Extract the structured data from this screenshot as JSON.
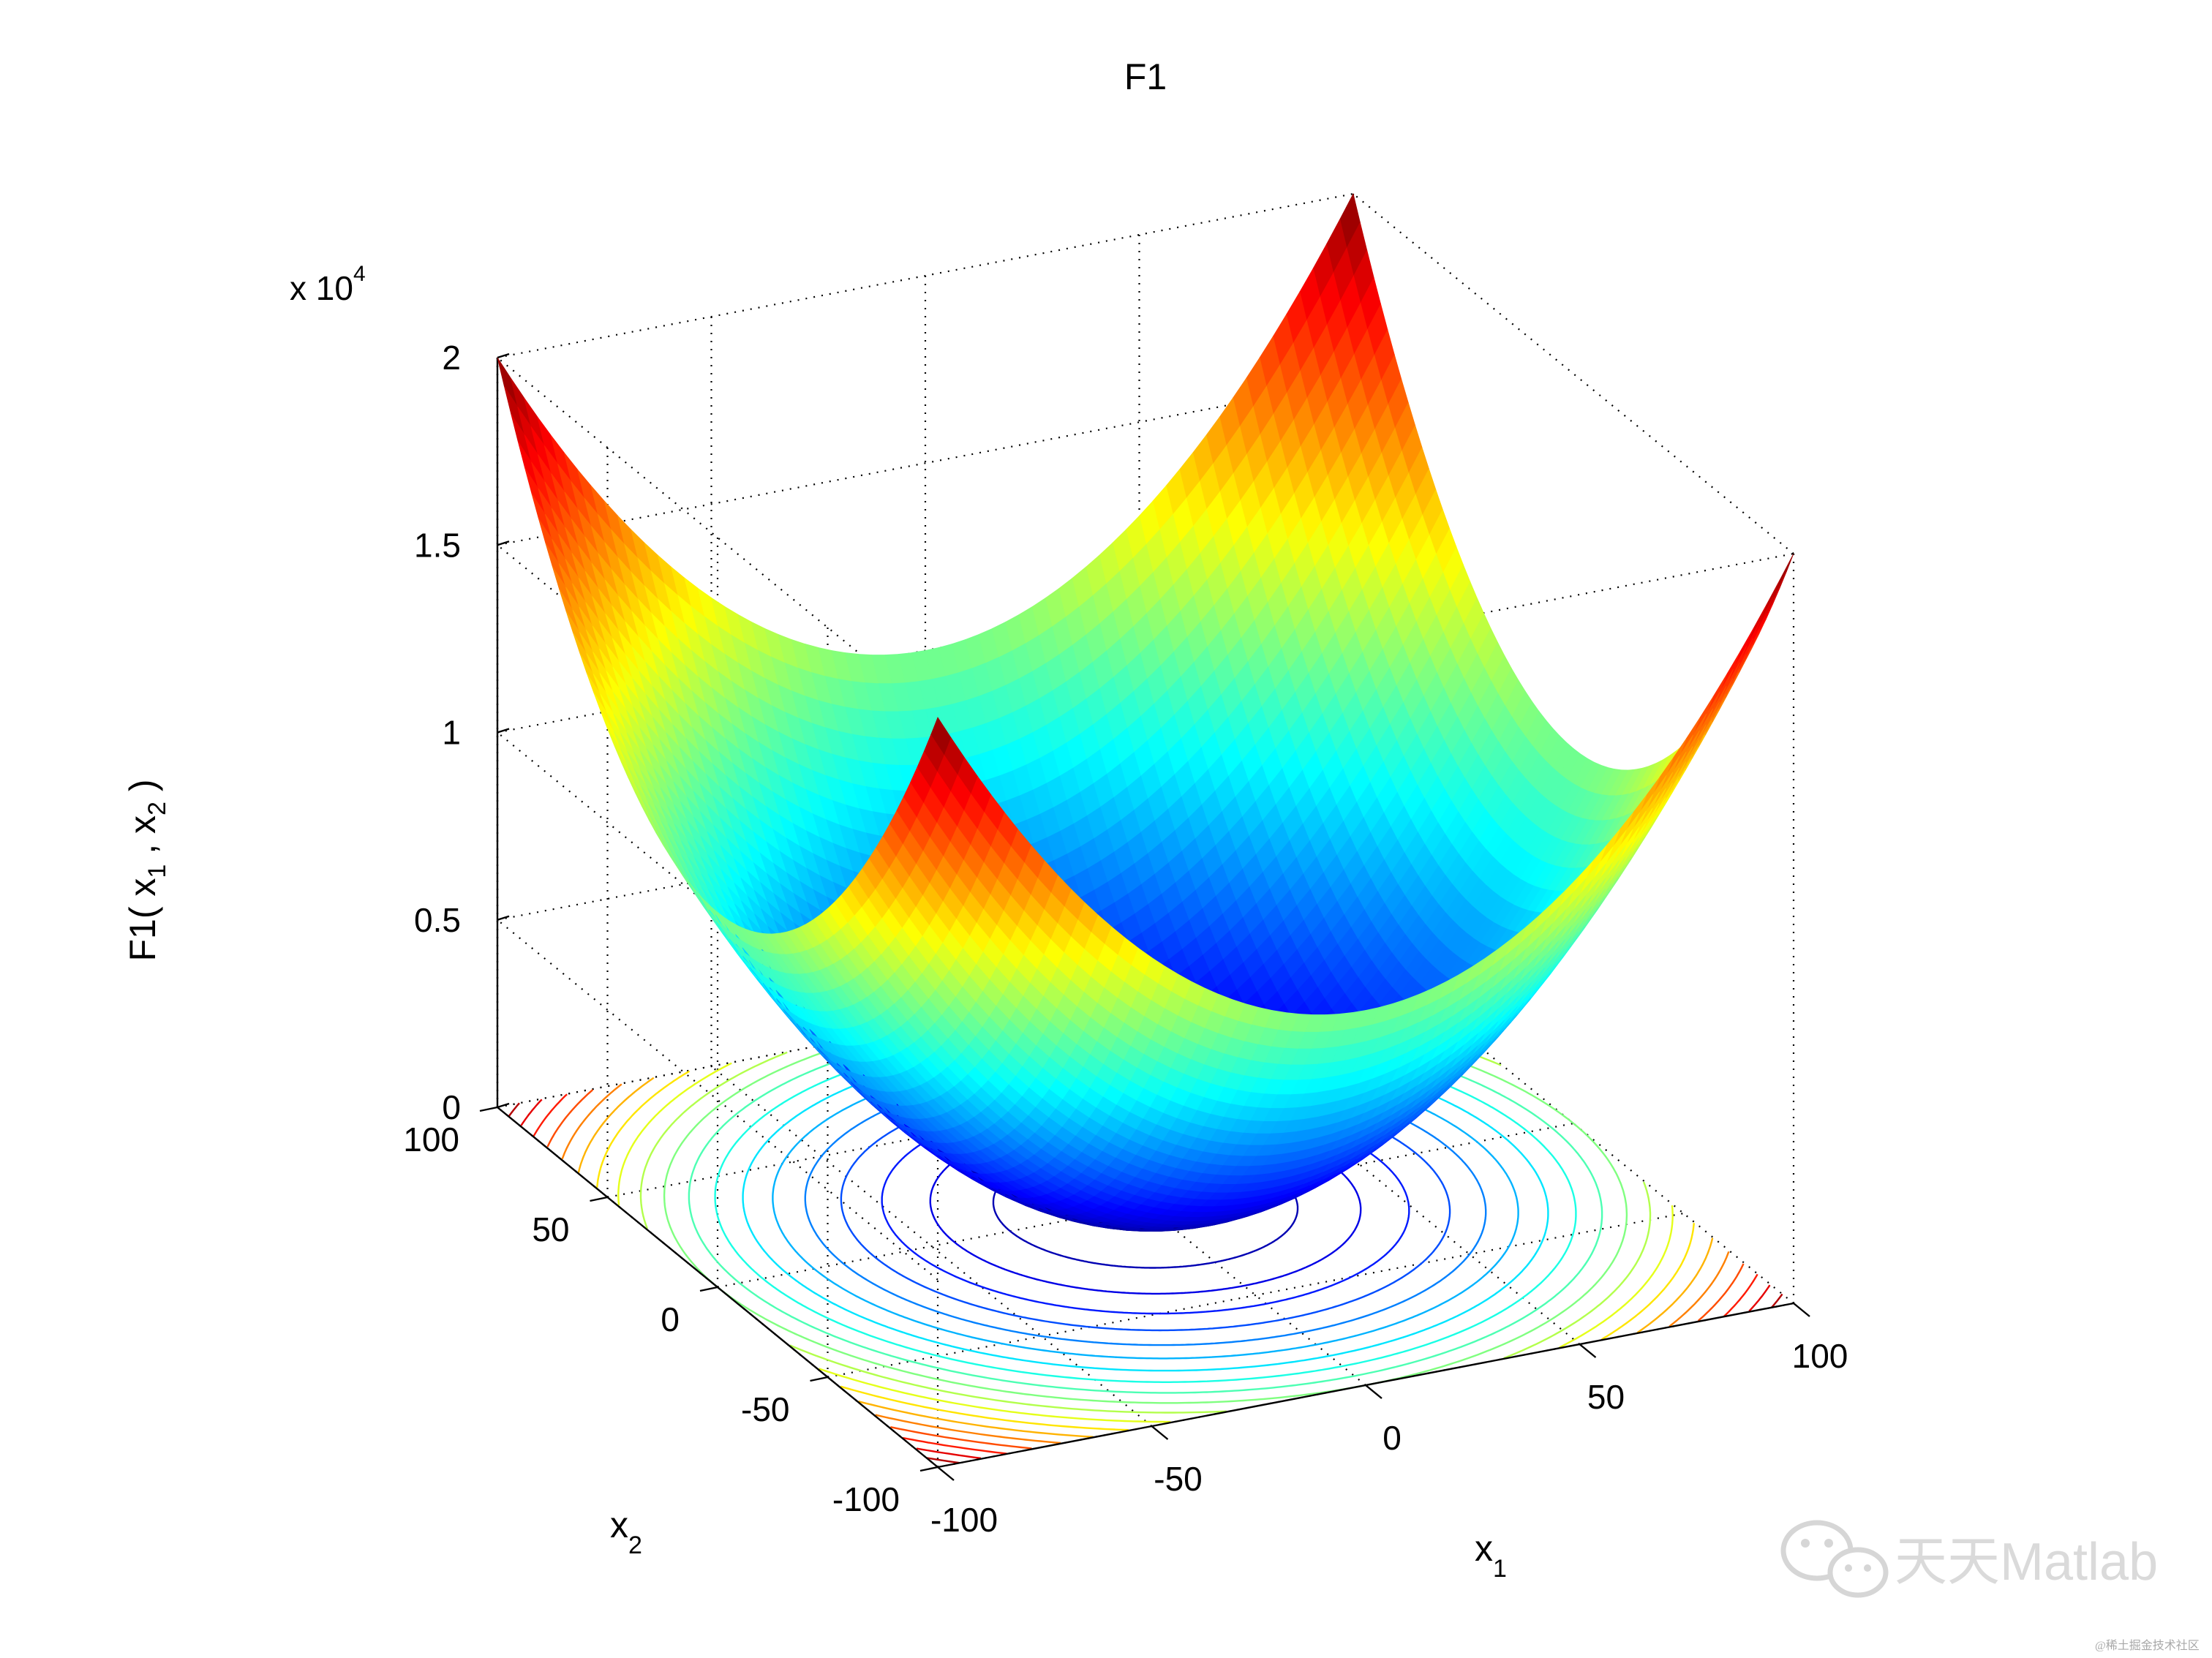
{
  "chart_data": {
    "type": "surface",
    "function": "F1(x1,x2) = x1^2 + x2^2",
    "title": "F1",
    "xlabel_base": "x",
    "xlabel_sub": "1",
    "ylabel_base": "x",
    "ylabel_sub": "2",
    "zlabel_parts": [
      "F1( x",
      "1",
      " , x",
      "2",
      " )"
    ],
    "z_exponent_base": "x 10",
    "z_exponent_power": "4",
    "x_range": [
      -100,
      100
    ],
    "y_range": [
      -100,
      100
    ],
    "z_range": [
      0,
      20000
    ],
    "x_ticks": [
      "-100",
      "-50",
      "0",
      "50",
      "100"
    ],
    "y_ticks": [
      "-100",
      "-50",
      "0",
      "50",
      "100"
    ],
    "z_ticks": [
      "0",
      "0.5",
      "1",
      "1.5",
      "2"
    ],
    "grid": true,
    "colormap": "jet",
    "contour_levels": [
      1000,
      2000,
      3000,
      4000,
      5000,
      6000,
      7000,
      8000,
      9000,
      10000,
      11000,
      12000,
      13000,
      14000,
      15000,
      16000,
      17000,
      18000,
      19000
    ],
    "sample_points": [
      {
        "x1": -100,
        "x2": -100,
        "z": 20000
      },
      {
        "x1": 100,
        "x2": 100,
        "z": 20000
      },
      {
        "x1": -100,
        "x2": 100,
        "z": 20000
      },
      {
        "x1": 100,
        "x2": -100,
        "z": 20000
      },
      {
        "x1": 0,
        "x2": 0,
        "z": 0
      },
      {
        "x1": 100,
        "x2": 0,
        "z": 10000
      },
      {
        "x1": 0,
        "x2": 100,
        "z": 10000
      },
      {
        "x1": 50,
        "x2": 50,
        "z": 5000
      }
    ]
  },
  "watermark": {
    "text": "天天Matlab",
    "small_text": "@稀土掘金技术社区",
    "icon": "wechat-icon"
  }
}
